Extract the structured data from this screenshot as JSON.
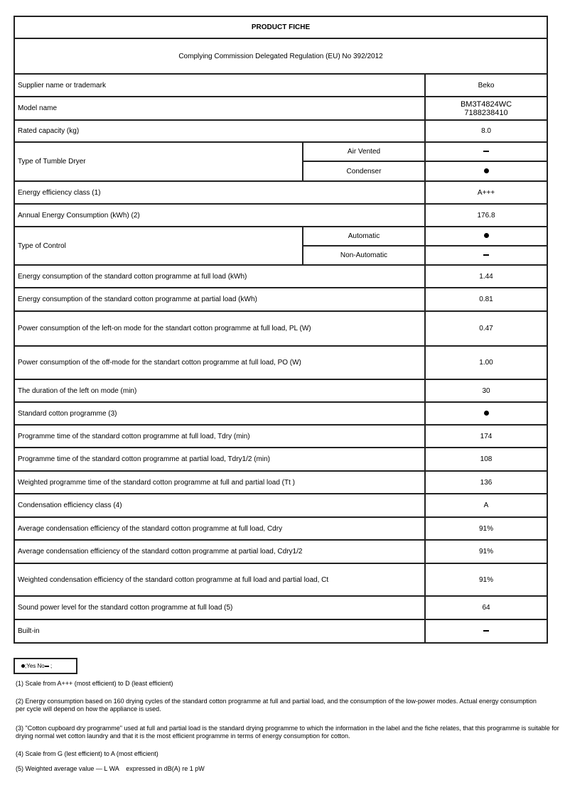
{
  "title": "PRODUCT FICHE",
  "subtitle": "Complying Commission Delegated Regulation (EU) No 392/2012",
  "rows": {
    "supplier": {
      "label": "Supplier name or trademark",
      "value": "Beko"
    },
    "model": {
      "label": "Model name",
      "value1": "BM3T4824WC",
      "value2": "7188238410"
    },
    "capacity": {
      "label": "Rated capacity (kg)",
      "value": "8.0"
    },
    "dryer_type": {
      "label": "Type of Tumble Dryer",
      "opt1": "Air Vented",
      "opt1_value": "no",
      "opt2": "Condenser",
      "opt2_value": "yes"
    },
    "energy_class": {
      "label": "Energy efficiency class (1)",
      "value": "A+++"
    },
    "annual": {
      "label": "Annual Energy Consumption (kWh) (2)",
      "value": "176.8"
    },
    "control_type": {
      "label": "Type of Control",
      "opt1": "Automatic",
      "opt1_value": "yes",
      "opt2": "Non-Automatic",
      "opt2_value": "no"
    },
    "e_full": {
      "label": "Energy consumption of the standard cotton programme at full load (kWh)",
      "value": "1.44"
    },
    "e_partial": {
      "label": "Energy consumption of the standard cotton programme at partial load (kWh)",
      "value": "0.81"
    },
    "pl": {
      "label": "Power consumption of the left-on mode for the standart cotton programme at full load, PL (W)",
      "value": "0.47"
    },
    "po": {
      "label": "Power consumption of the off-mode for the standart cotton programme at full load, PO (W)",
      "value": "1.00"
    },
    "left_on": {
      "label": "The duration of the left on mode (min)",
      "value": "30"
    },
    "std_cotton": {
      "label": "Standard cotton programme (3)",
      "value": "yes"
    },
    "t_full": {
      "label": "Programme time of the standard cotton programme at full load, Tdry (min)",
      "value": "174"
    },
    "t_partial": {
      "label": "Programme time of the standard cotton programme at partial load, Tdry1/2 (min)",
      "value": "108"
    },
    "t_weighted": {
      "label": "Weighted programme time of the standard cotton programme at full and partial load (Tt )",
      "value": "136"
    },
    "cond_class": {
      "label": "Condensation efficiency class (4)",
      "value": "A"
    },
    "cdry": {
      "label": "Average condensation efficiency of the standard cotton programme at full load, Cdry",
      "value": "91%"
    },
    "cdry_half": {
      "label": "Average condensation efficiency of the standard cotton programme at partial load, Cdry1/2",
      "value": "91%"
    },
    "ct": {
      "label": "Weighted condensation efficiency of the standard cotton programme at full load and partial load, Ct",
      "value": "91%"
    },
    "sound": {
      "label": "Sound power level for the standard cotton programme at full load (5)",
      "value": "64"
    },
    "built_in": {
      "label": "Built-in",
      "value": "no"
    }
  },
  "legend": {
    "yes": ";Yes",
    "no": "No",
    "end": ";"
  },
  "notes": [
    "(1) Scale from A+++ (most efficient) to D (least efficient)",
    "(2) Energy consumption based on 160 drying cycles of the standard cotton programme at full and partial load, and the consumption of the low-power modes. Actual energy consumption per cycle will depend on how the appliance is used.",
    "(3) \"Cotton cupboard dry programme\" used at full and partial load is the standard drying programme to which the information  in the label and the fiche relates, that this programme is suitable for drying normal wet cotton laundry and that it is the most efficient programme in terms of energy consumption for cotton.",
    "(4) Scale from G (lest efficient) to A (most efficient)",
    "(5) Weighted average value — L WA    expressed in dB(A) re 1 pW"
  ]
}
